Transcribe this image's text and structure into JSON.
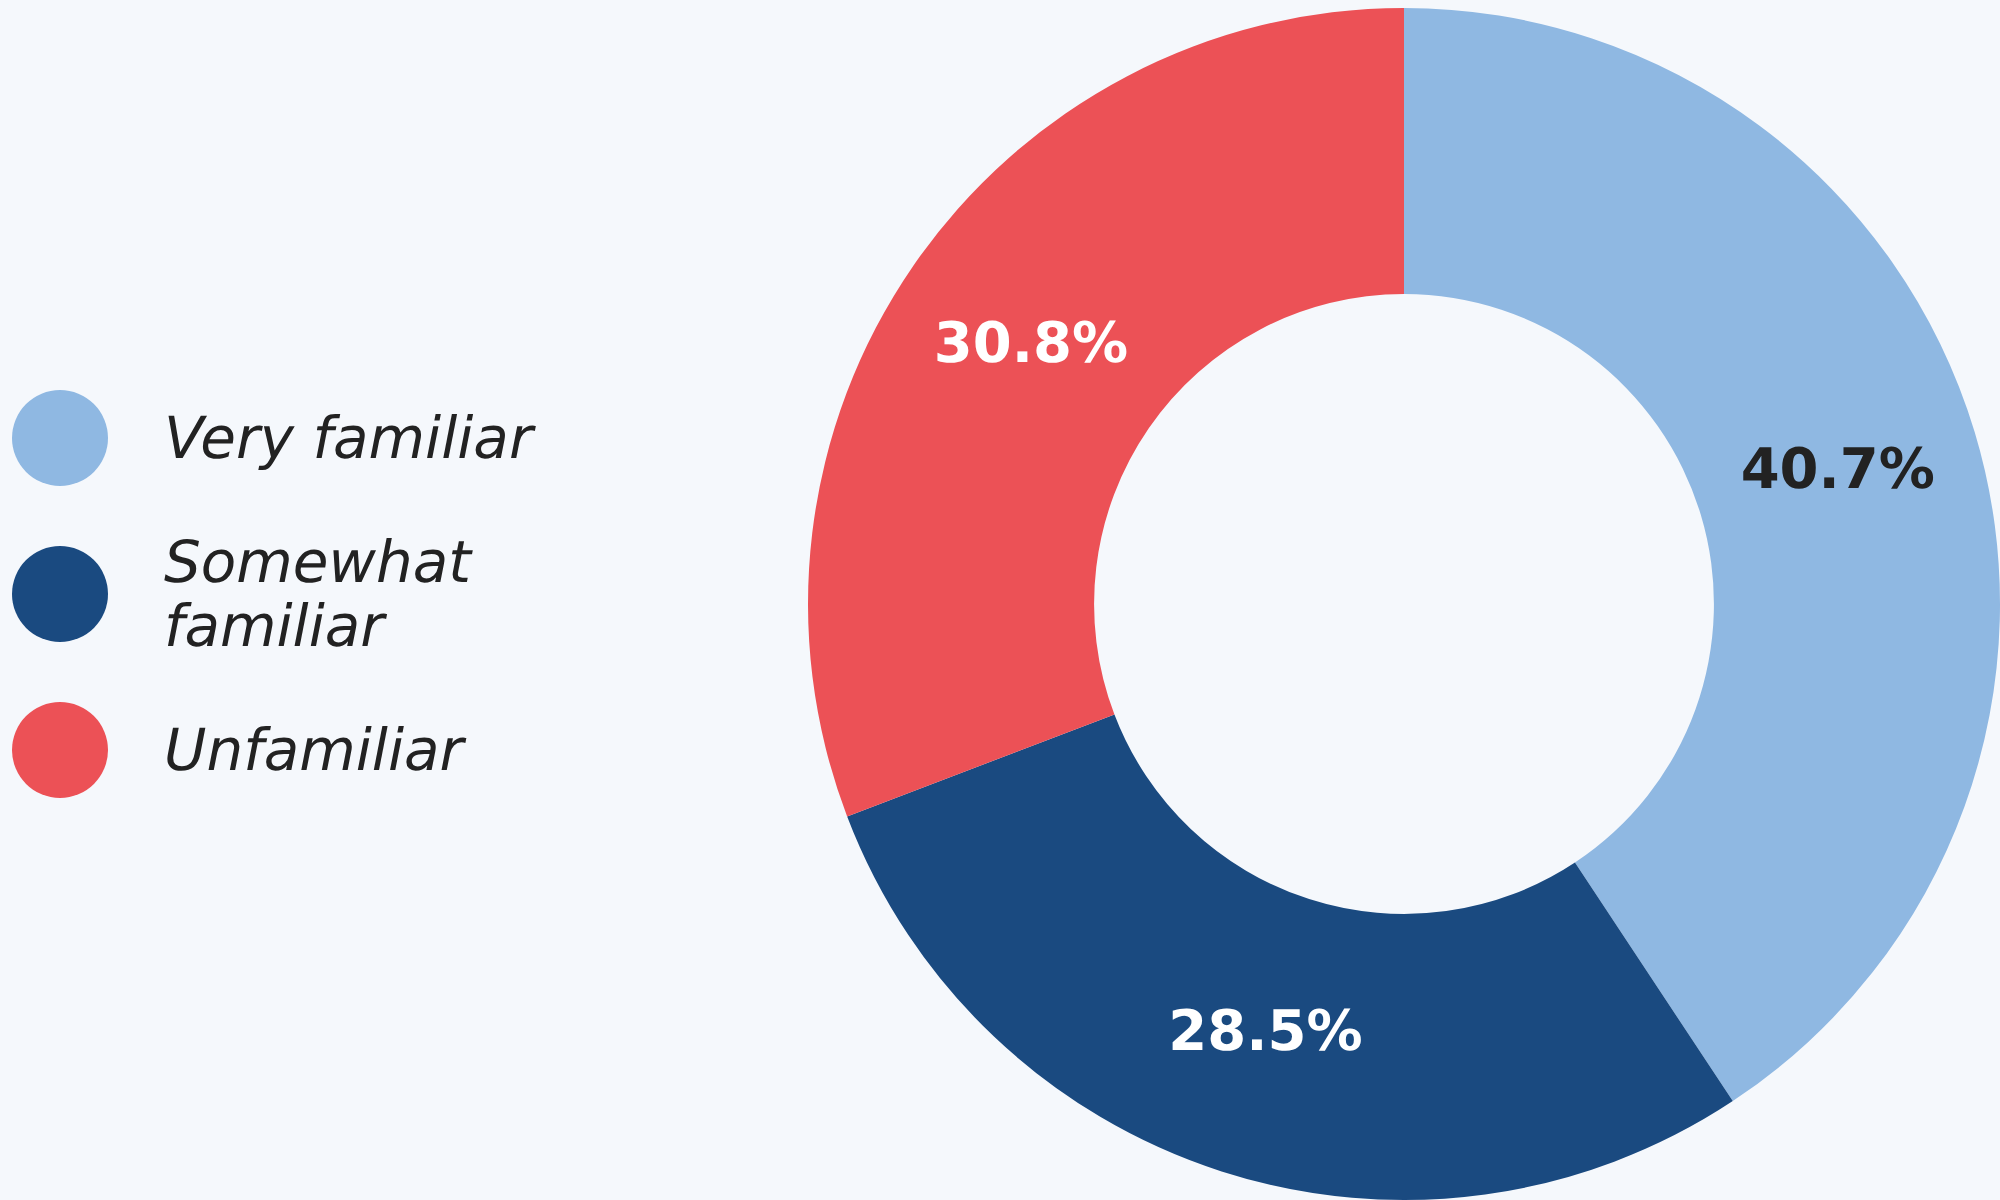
{
  "chart_data": {
    "type": "donut",
    "categories": [
      "Very familiar",
      "Somewhat familiar",
      "Unfamiliar"
    ],
    "values": [
      40.7,
      28.5,
      30.8
    ],
    "value_labels": [
      "40.7%",
      "28.5%",
      "30.8%"
    ],
    "colors": [
      "#8fb8e2",
      "#1a4a80",
      "#ec5156"
    ],
    "legend": "left"
  }
}
